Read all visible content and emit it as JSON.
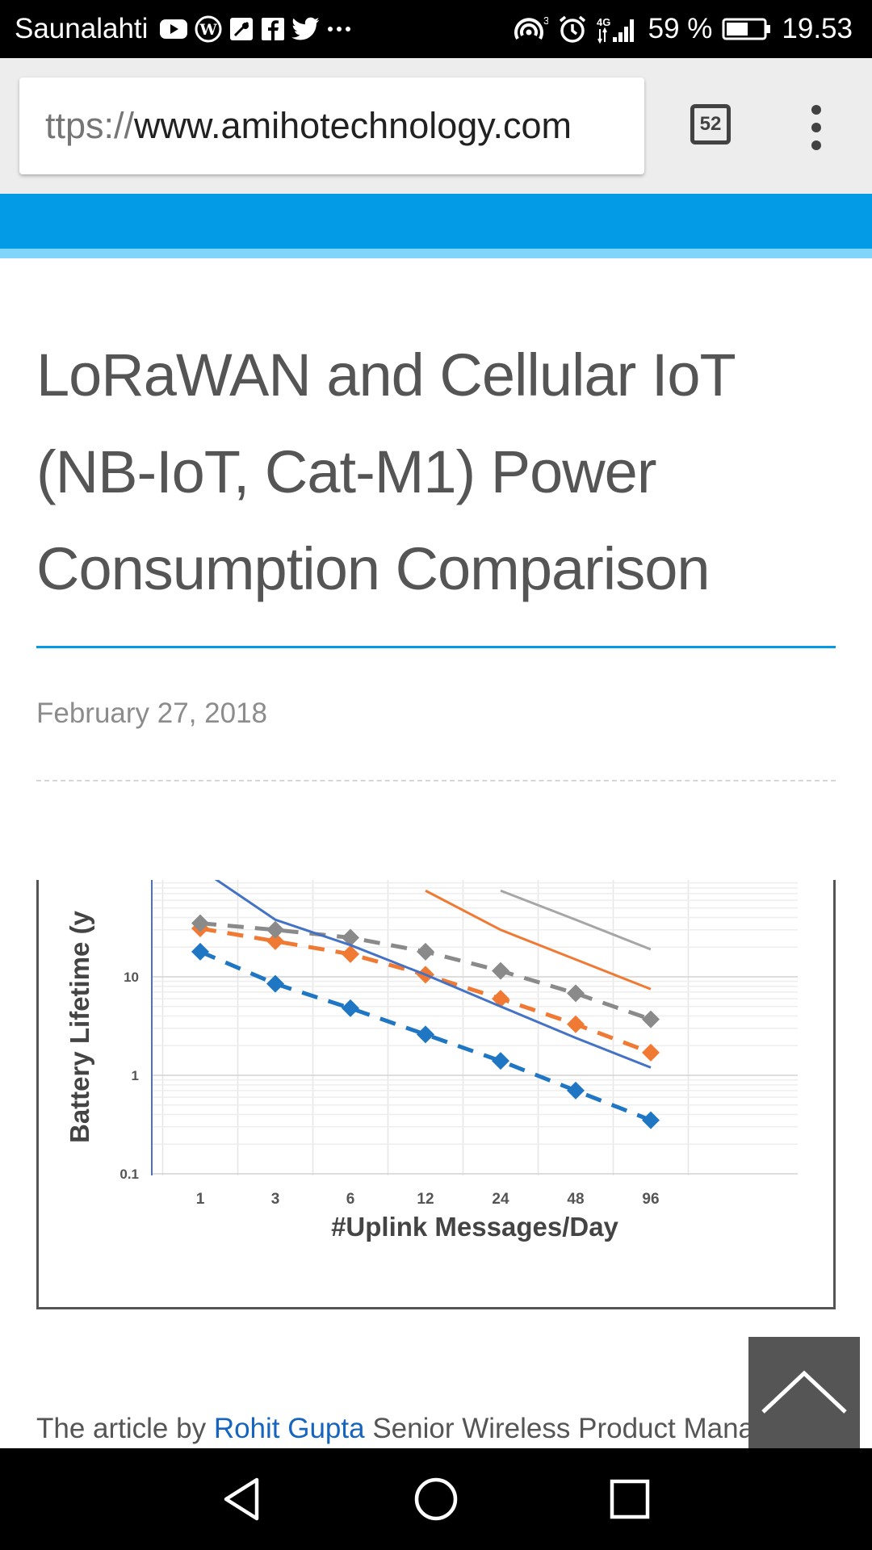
{
  "status_bar": {
    "carrier": "Saunalahti",
    "notification_icons": [
      "youtube-icon",
      "wordpress-icon",
      "maps-icon",
      "facebook-icon",
      "twitter-icon",
      "more-dots-icon"
    ],
    "hotspot_count": "3",
    "network": "4G",
    "battery": "59 %",
    "time": "19.53"
  },
  "browser": {
    "url_scheme": "ttps://",
    "url_host": "www.amihotechnology.com",
    "tab_count": "52"
  },
  "article": {
    "title": "LoRaWAN and Cellular IoT (NB-IoT, Cat-M1) Power Consumption Comparison",
    "date": "February 27, 2018",
    "intro_prefix": "The article by ",
    "author": "Rohit Gupta",
    "intro_suffix": " Senior Wireless Product Mana"
  },
  "chart_data": {
    "type": "line",
    "xlabel": "#Uplink Messages/Day",
    "ylabel": "Battery Lifetime (y",
    "x": [
      1,
      3,
      6,
      12,
      24,
      48,
      96
    ],
    "x_tick_labels": [
      "1",
      "3",
      "6",
      "12",
      "24",
      "48",
      "96"
    ],
    "y_tick_labels": [
      "10",
      "1",
      "0.1"
    ],
    "y_scale": "log",
    "ylim": [
      0.1,
      75
    ],
    "grid": true,
    "series": [
      {
        "style": "dashed-markers",
        "color": "#1f77c4",
        "values": [
          18,
          8.5,
          4.8,
          2.6,
          1.4,
          0.7,
          0.35
        ]
      },
      {
        "style": "dashed-markers",
        "color": "#f07a33",
        "values": [
          31,
          23,
          17,
          10.5,
          6,
          3.3,
          1.7
        ]
      },
      {
        "style": "dashed-markers",
        "color": "#8a8a8a",
        "values": [
          35,
          30,
          25,
          18,
          11.5,
          6.8,
          3.7
        ]
      },
      {
        "style": "solid",
        "color": "#4472c4",
        "values": [
          125,
          38,
          21,
          10.5,
          5,
          2.4,
          1.2
        ]
      },
      {
        "style": "solid",
        "color": "#f07a33",
        "values": [
          null,
          null,
          null,
          75,
          30,
          15,
          7.5
        ]
      },
      {
        "style": "solid",
        "color": "#a6a6a6",
        "values": [
          null,
          null,
          null,
          null,
          75,
          38,
          19
        ]
      }
    ]
  }
}
